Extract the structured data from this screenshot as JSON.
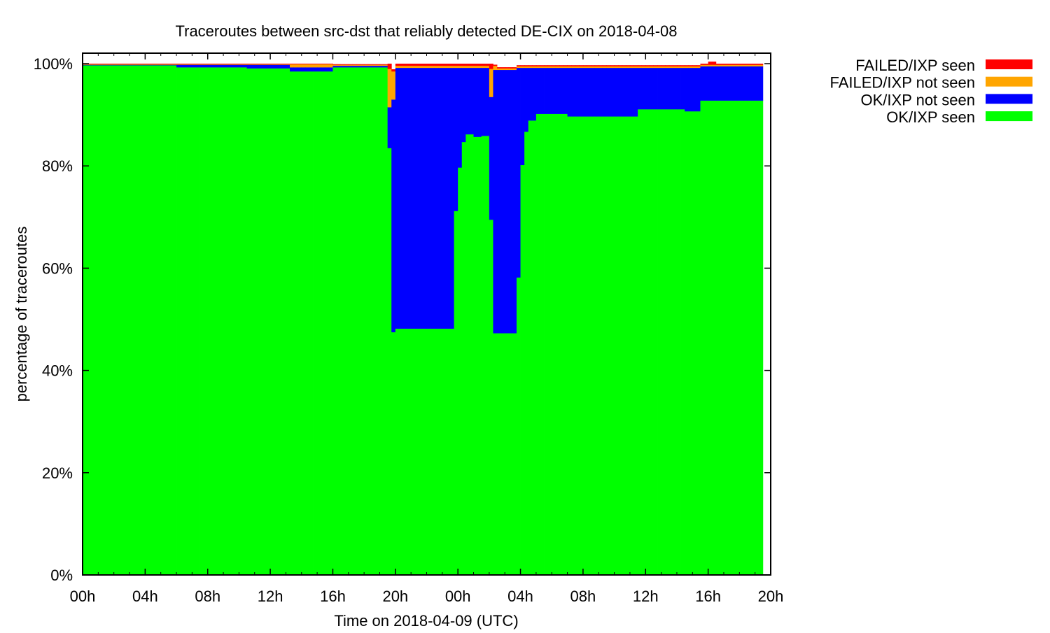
{
  "chart_data": {
    "type": "bar",
    "stacked": true,
    "title": "Traceroutes between src-dst that reliably detected DE-CIX on 2018-04-08",
    "xlabel": "Time on 2018-04-09 (UTC)",
    "ylabel": "percentage of traceroutes",
    "x_ticks": [
      "00h",
      "04h",
      "08h",
      "12h",
      "16h",
      "20h",
      "00h",
      "04h",
      "08h",
      "12h",
      "16h",
      "20h"
    ],
    "y_ticks": [
      "0%",
      "20%",
      "40%",
      "60%",
      "80%",
      "100%"
    ],
    "xlim_hours": [
      0,
      44
    ],
    "ylim": [
      0,
      100
    ],
    "bin_minutes": 15,
    "grid": false,
    "legend_position": "top-right, outside plot",
    "series": [
      {
        "name": "FAILED/IXP seen",
        "color": "#ff0000",
        "segments": [
          {
            "start_h": 0,
            "end_h": 19.5,
            "value": 0.1
          },
          {
            "start_h": 19.5,
            "end_h": 19.75,
            "value": 1.0
          },
          {
            "start_h": 19.75,
            "end_h": 26.0,
            "value": 0.4
          },
          {
            "start_h": 26.0,
            "end_h": 26.25,
            "value": 1.0
          },
          {
            "start_h": 26.25,
            "end_h": 40.0,
            "value": 0.2
          },
          {
            "start_h": 40.0,
            "end_h": 40.5,
            "value": 0.6
          },
          {
            "start_h": 40.5,
            "end_h": 43.5,
            "value": 0.2
          }
        ]
      },
      {
        "name": "FAILED/IXP not seen",
        "color": "#ffa500",
        "segments": [
          {
            "start_h": 0,
            "end_h": 13.25,
            "value": 0.1
          },
          {
            "start_h": 13.25,
            "end_h": 16.0,
            "value": 0.6
          },
          {
            "start_h": 16.0,
            "end_h": 19.5,
            "value": 0.2
          },
          {
            "start_h": 19.5,
            "end_h": 19.75,
            "value": 7.5
          },
          {
            "start_h": 19.75,
            "end_h": 20.0,
            "value": 5.5
          },
          {
            "start_h": 20.0,
            "end_h": 26.0,
            "value": 0.4
          },
          {
            "start_h": 26.0,
            "end_h": 26.25,
            "value": 5.5
          },
          {
            "start_h": 26.25,
            "end_h": 26.5,
            "value": 0.8
          },
          {
            "start_h": 26.5,
            "end_h": 43.5,
            "value": 0.3
          }
        ]
      },
      {
        "name": "OK/IXP not seen",
        "color": "#0000ff",
        "segments": [
          {
            "start_h": 0,
            "end_h": 6.0,
            "value": 0.1
          },
          {
            "start_h": 6.0,
            "end_h": 10.5,
            "value": 0.5
          },
          {
            "start_h": 10.5,
            "end_h": 13.25,
            "value": 0.7
          },
          {
            "start_h": 13.25,
            "end_h": 16.0,
            "value": 0.8
          },
          {
            "start_h": 16.0,
            "end_h": 19.5,
            "value": 0.3
          },
          {
            "start_h": 19.5,
            "end_h": 19.75,
            "value": 8.0
          },
          {
            "start_h": 19.75,
            "end_h": 20.0,
            "value": 45.5
          },
          {
            "start_h": 20.0,
            "end_h": 23.75,
            "value": 51.0
          },
          {
            "start_h": 23.75,
            "end_h": 24.0,
            "value": 28.0
          },
          {
            "start_h": 24.0,
            "end_h": 24.25,
            "value": 19.5
          },
          {
            "start_h": 24.25,
            "end_h": 24.5,
            "value": 14.5
          },
          {
            "start_h": 24.5,
            "end_h": 25.0,
            "value": 13.0
          },
          {
            "start_h": 25.0,
            "end_h": 25.5,
            "value": 13.5
          },
          {
            "start_h": 25.5,
            "end_h": 26.0,
            "value": 13.3
          },
          {
            "start_h": 26.0,
            "end_h": 26.25,
            "value": 24.0
          },
          {
            "start_h": 26.25,
            "end_h": 27.75,
            "value": 51.5
          },
          {
            "start_h": 27.75,
            "end_h": 28.0,
            "value": 41.0
          },
          {
            "start_h": 28.0,
            "end_h": 28.25,
            "value": 19.0
          },
          {
            "start_h": 28.25,
            "end_h": 28.5,
            "value": 12.5
          },
          {
            "start_h": 28.5,
            "end_h": 29.0,
            "value": 10.3
          },
          {
            "start_h": 29.0,
            "end_h": 31.0,
            "value": 9.0
          },
          {
            "start_h": 31.0,
            "end_h": 35.5,
            "value": 9.5
          },
          {
            "start_h": 35.5,
            "end_h": 38.5,
            "value": 8.1
          },
          {
            "start_h": 38.5,
            "end_h": 39.5,
            "value": 8.5
          },
          {
            "start_h": 39.5,
            "end_h": 43.5,
            "value": 6.7
          }
        ]
      },
      {
        "name": "OK/IXP seen",
        "color": "#00ff00",
        "segments": [
          {
            "start_h": 0,
            "end_h": 6.0,
            "value": 99.7
          },
          {
            "start_h": 6.0,
            "end_h": 10.5,
            "value": 99.3
          },
          {
            "start_h": 10.5,
            "end_h": 13.25,
            "value": 99.1
          },
          {
            "start_h": 13.25,
            "end_h": 16.0,
            "value": 98.5
          },
          {
            "start_h": 16.0,
            "end_h": 19.5,
            "value": 99.3
          },
          {
            "start_h": 19.5,
            "end_h": 19.75,
            "value": 83.5
          },
          {
            "start_h": 19.75,
            "end_h": 20.0,
            "value": 47.5
          },
          {
            "start_h": 20.0,
            "end_h": 23.75,
            "value": 48.2
          },
          {
            "start_h": 23.75,
            "end_h": 24.0,
            "value": 71.2
          },
          {
            "start_h": 24.0,
            "end_h": 24.25,
            "value": 79.7
          },
          {
            "start_h": 24.25,
            "end_h": 24.5,
            "value": 84.7
          },
          {
            "start_h": 24.5,
            "end_h": 25.0,
            "value": 86.2
          },
          {
            "start_h": 25.0,
            "end_h": 25.5,
            "value": 85.7
          },
          {
            "start_h": 25.5,
            "end_h": 26.0,
            "value": 85.9
          },
          {
            "start_h": 26.0,
            "end_h": 26.25,
            "value": 69.5
          },
          {
            "start_h": 26.25,
            "end_h": 27.75,
            "value": 47.3
          },
          {
            "start_h": 27.75,
            "end_h": 28.0,
            "value": 58.2
          },
          {
            "start_h": 28.0,
            "end_h": 28.25,
            "value": 80.2
          },
          {
            "start_h": 28.25,
            "end_h": 28.5,
            "value": 86.7
          },
          {
            "start_h": 28.5,
            "end_h": 29.0,
            "value": 88.9
          },
          {
            "start_h": 29.0,
            "end_h": 31.0,
            "value": 90.2
          },
          {
            "start_h": 31.0,
            "end_h": 35.5,
            "value": 89.7
          },
          {
            "start_h": 35.5,
            "end_h": 38.5,
            "value": 91.1
          },
          {
            "start_h": 38.5,
            "end_h": 39.5,
            "value": 90.7
          },
          {
            "start_h": 39.5,
            "end_h": 43.5,
            "value": 92.8
          }
        ]
      }
    ]
  }
}
